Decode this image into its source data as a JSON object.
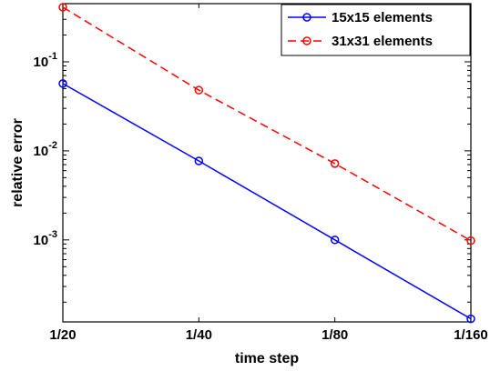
{
  "chart_data": {
    "type": "line",
    "xlabel": "time step",
    "ylabel": "relative error",
    "x": [
      "1/20",
      "1/40",
      "1/80",
      "1/160"
    ],
    "x_values": [
      0.05,
      0.025,
      0.0125,
      0.00625
    ],
    "x_scale": "log",
    "x_reversed": true,
    "y_scale": "log",
    "ylim": [
      0.00012,
      0.45
    ],
    "y_ticks": [
      {
        "value": 0.001,
        "base": "10",
        "exp": "-3"
      },
      {
        "value": 0.01,
        "base": "10",
        "exp": "-2"
      },
      {
        "value": 0.1,
        "base": "10",
        "exp": "-1"
      }
    ],
    "grid": false,
    "legend": "top-right",
    "series": [
      {
        "name": "15x15 elements",
        "color": "#0000ff",
        "line_style": "solid",
        "marker": "circle",
        "values": [
          0.057,
          0.0077,
          0.001,
          0.00013
        ]
      },
      {
        "name": "31x31 elements",
        "color": "#ff0000",
        "line_style": "dashed",
        "marker": "circle",
        "values": [
          0.41,
          0.048,
          0.0072,
          0.00098
        ]
      }
    ]
  }
}
